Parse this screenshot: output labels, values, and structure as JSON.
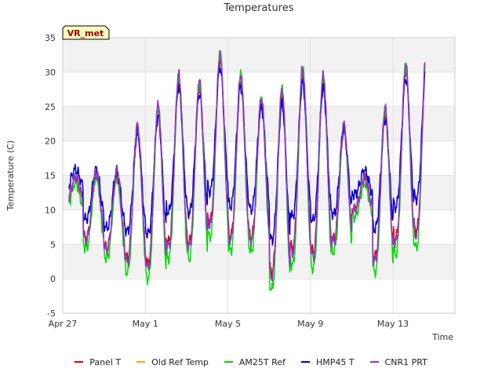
{
  "chart_data": {
    "type": "line",
    "title": "Temperatures",
    "xlabel": "Time",
    "ylabel": "Temperature (C)",
    "ylim": [
      -5,
      35
    ],
    "yticks": [
      -5,
      0,
      5,
      10,
      15,
      20,
      25,
      30,
      35
    ],
    "xlim_days": [
      0,
      19
    ],
    "xticks": [
      {
        "day": 0,
        "label": "Apr 27"
      },
      {
        "day": 4,
        "label": "May 1"
      },
      {
        "day": 8,
        "label": "May 5"
      },
      {
        "day": 12,
        "label": "May 9"
      },
      {
        "day": 16,
        "label": "May 13"
      }
    ],
    "grid": "horizontal bands",
    "legend_position": "bottom",
    "annotation": "VR_met",
    "daily_extremes": [
      {
        "day": 0,
        "min": 10,
        "max": 14
      },
      {
        "day": 1,
        "min": 4.5,
        "max": 15
      },
      {
        "day": 2,
        "min": 3,
        "max": 15
      },
      {
        "day": 3,
        "min": 1,
        "max": 22
      },
      {
        "day": 4,
        "min": 0,
        "max": 25
      },
      {
        "day": 5,
        "min": 3,
        "max": 29.5
      },
      {
        "day": 6,
        "min": 3,
        "max": 28.5
      },
      {
        "day": 7,
        "min": 6,
        "max": 32.5
      },
      {
        "day": 8,
        "min": 4,
        "max": 29.5
      },
      {
        "day": 9,
        "min": 4,
        "max": 26
      },
      {
        "day": 10,
        "min": -1.5,
        "max": 27.5
      },
      {
        "day": 11,
        "min": 2,
        "max": 30.5
      },
      {
        "day": 12,
        "min": 1.5,
        "max": 29.5
      },
      {
        "day": 13,
        "min": 4,
        "max": 22
      },
      {
        "day": 14,
        "min": 9,
        "max": 14
      },
      {
        "day": 15,
        "min": 1,
        "max": 24.5
      },
      {
        "day": 16,
        "min": 3.5,
        "max": 31
      },
      {
        "day": 17,
        "min": 4.5,
        "max": 33.5
      },
      {
        "day": 17.5,
        "min": 8,
        "max": 14
      }
    ],
    "series": [
      {
        "name": "Panel T",
        "color": "#dd0000",
        "amp_factor": 0.88,
        "offset": 0.8
      },
      {
        "name": "Old Ref Temp",
        "color": "#ffa500",
        "amp_factor": 0,
        "offset": 0,
        "empty": true
      },
      {
        "name": "AM25T Ref",
        "color": "#00dd00",
        "amp_factor": 1.0,
        "offset": 0
      },
      {
        "name": "HMP45 T",
        "color": "#0000cc",
        "amp_factor": 0.68,
        "offset": 2.5
      },
      {
        "name": "CNR1 PRT",
        "color": "#9933cc",
        "amp_factor": 0.94,
        "offset": 0.9
      }
    ]
  }
}
